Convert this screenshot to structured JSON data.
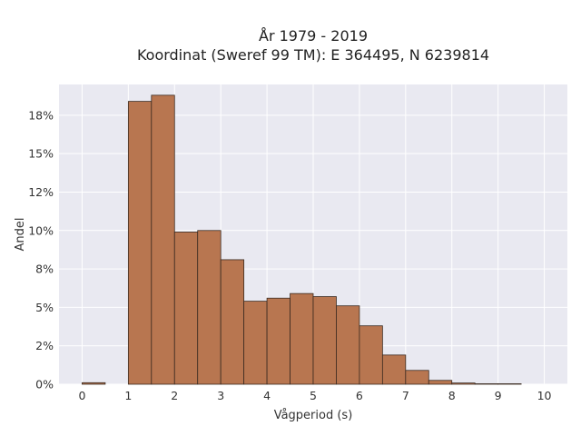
{
  "chart_data": {
    "type": "bar",
    "title": "År 1979 - 2019",
    "subtitle": "Koordinat (Sweref 99 TM): E 364495, N 6239814",
    "xlabel": "Vågperiod (s)",
    "ylabel": "Andel",
    "bin_width": 0.5,
    "bin_starts": [
      0,
      0.5,
      1,
      1.5,
      2,
      2.5,
      3,
      3.5,
      4,
      4.5,
      5,
      5.5,
      6,
      6.5,
      7,
      7.5,
      8,
      8.5,
      9,
      9.5
    ],
    "values": [
      0.1,
      0,
      18.4,
      18.8,
      9.9,
      10.0,
      8.1,
      5.4,
      5.6,
      5.9,
      5.7,
      5.1,
      3.8,
      1.9,
      0.9,
      0.25,
      0.08,
      0.03,
      0.03,
      0
    ],
    "xlim": [
      -0.5,
      10.5
    ],
    "ylim": [
      0,
      19.5
    ],
    "xticks": [
      0,
      1,
      2,
      3,
      4,
      5,
      6,
      7,
      8,
      9,
      10
    ],
    "xtick_labels": [
      "0",
      "1",
      "2",
      "3",
      "4",
      "5",
      "6",
      "7",
      "8",
      "9",
      "10"
    ],
    "yticks": [
      0,
      2.5,
      5,
      7.5,
      10,
      12.5,
      15,
      17.5
    ],
    "ytick_labels": [
      "0%",
      "2%",
      "5%",
      "8%",
      "10%",
      "12%",
      "15%",
      "18%"
    ],
    "bar_color": "#b87650",
    "edge_color": "#3a2a20",
    "background_color": "#e9e9f1",
    "grid": true,
    "legend": false
  }
}
